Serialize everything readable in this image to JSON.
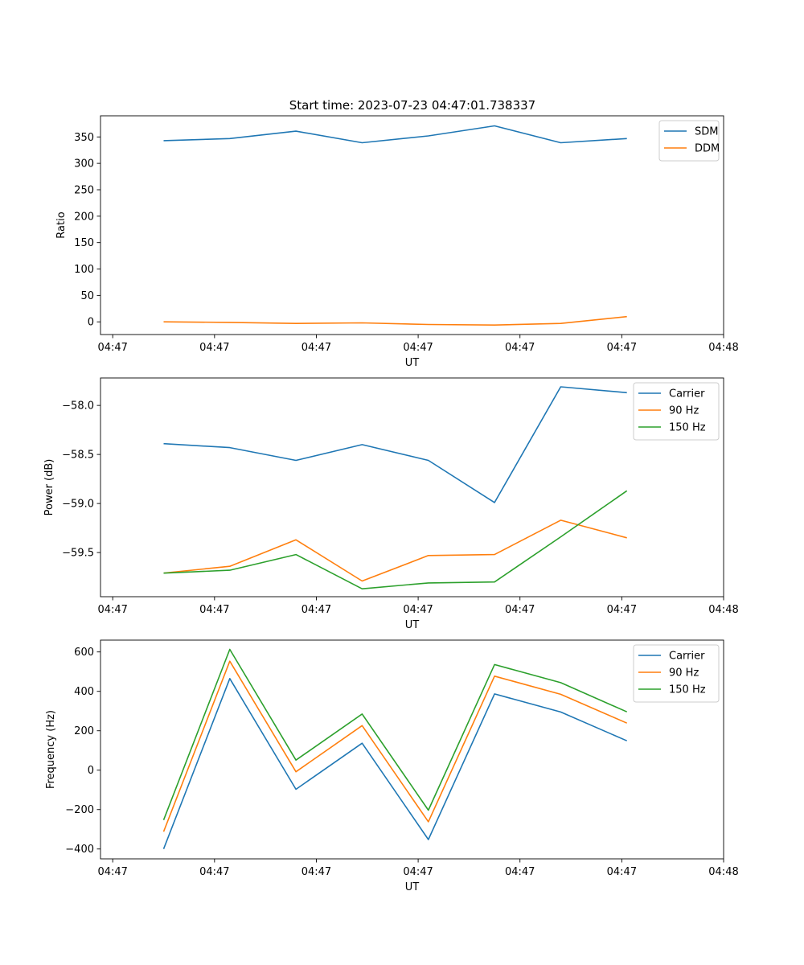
{
  "figure": {
    "title": "Start time: 2023-07-23 04:47:01.738337"
  },
  "chart_data": [
    {
      "type": "line",
      "xlabel": "UT",
      "ylabel": "Ratio",
      "x": [
        0.5,
        1.15,
        1.8,
        2.45,
        3.1,
        3.75,
        4.4,
        5.05
      ],
      "xlim": [
        -0.12,
        6.0
      ],
      "xticks": [
        0,
        1,
        2,
        3,
        4,
        5,
        6
      ],
      "xtick_labels": [
        "04:47",
        "04:47",
        "04:47",
        "04:47",
        "04:47",
        "04:47",
        "04:48"
      ],
      "ylim": [
        -24,
        390
      ],
      "yticks": [
        0,
        50,
        100,
        150,
        200,
        250,
        300,
        350
      ],
      "ytick_labels": [
        "0",
        "50",
        "100",
        "150",
        "200",
        "250",
        "300",
        "350"
      ],
      "legend": "top-right",
      "series": [
        {
          "name": "SDM",
          "color": "#1f77b4",
          "values": [
            343,
            347,
            361,
            339,
            352,
            371,
            339,
            347
          ]
        },
        {
          "name": "DDM",
          "color": "#ff7f0e",
          "values": [
            0,
            -1,
            -3,
            -2,
            -5,
            -6,
            -3,
            10
          ]
        }
      ]
    },
    {
      "type": "line",
      "xlabel": "UT",
      "ylabel": "Power (dB)",
      "x": [
        0.5,
        1.15,
        1.8,
        2.45,
        3.1,
        3.75,
        4.4,
        5.05
      ],
      "xlim": [
        -0.12,
        6.0
      ],
      "xticks": [
        0,
        1,
        2,
        3,
        4,
        5,
        6
      ],
      "xtick_labels": [
        "04:47",
        "04:47",
        "04:47",
        "04:47",
        "04:47",
        "04:47",
        "04:48"
      ],
      "ylim": [
        -59.95,
        -57.72
      ],
      "yticks": [
        -59.5,
        -59.0,
        -58.5,
        -58.0
      ],
      "ytick_labels": [
        "−59.5",
        "−59.0",
        "−58.5",
        "−58.0"
      ],
      "legend": "top-right",
      "series": [
        {
          "name": "Carrier",
          "color": "#1f77b4",
          "values": [
            -58.39,
            -58.43,
            -58.56,
            -58.4,
            -58.56,
            -58.99,
            -57.81,
            -57.87
          ]
        },
        {
          "name": "90 Hz",
          "color": "#ff7f0e",
          "values": [
            -59.71,
            -59.64,
            -59.37,
            -59.79,
            -59.53,
            -59.52,
            -59.17,
            -59.35
          ]
        },
        {
          "name": "150 Hz",
          "color": "#2ca02c",
          "values": [
            -59.71,
            -59.68,
            -59.52,
            -59.87,
            -59.81,
            -59.8,
            -59.34,
            -58.87
          ]
        }
      ]
    },
    {
      "type": "line",
      "xlabel": "UT",
      "ylabel": "Frequency (Hz)",
      "x": [
        0.5,
        1.15,
        1.8,
        2.45,
        3.1,
        3.75,
        4.4,
        5.05
      ],
      "xlim": [
        -0.12,
        6.0
      ],
      "xticks": [
        0,
        1,
        2,
        3,
        4,
        5,
        6
      ],
      "xtick_labels": [
        "04:47",
        "04:47",
        "04:47",
        "04:47",
        "04:47",
        "04:47",
        "04:48"
      ],
      "ylim": [
        -450,
        660
      ],
      "yticks": [
        -400,
        -200,
        0,
        200,
        400,
        600
      ],
      "ytick_labels": [
        "−400",
        "−200",
        "0",
        "200",
        "400",
        "600"
      ],
      "legend": "top-right",
      "series": [
        {
          "name": "Carrier",
          "color": "#1f77b4",
          "values": [
            -400,
            465,
            -97,
            137,
            -352,
            387,
            295,
            149
          ]
        },
        {
          "name": "90 Hz",
          "color": "#ff7f0e",
          "values": [
            -312,
            553,
            -8,
            226,
            -262,
            477,
            385,
            239
          ]
        },
        {
          "name": "150 Hz",
          "color": "#2ca02c",
          "values": [
            -253,
            613,
            51,
            285,
            -203,
            536,
            444,
            296
          ]
        }
      ]
    }
  ]
}
